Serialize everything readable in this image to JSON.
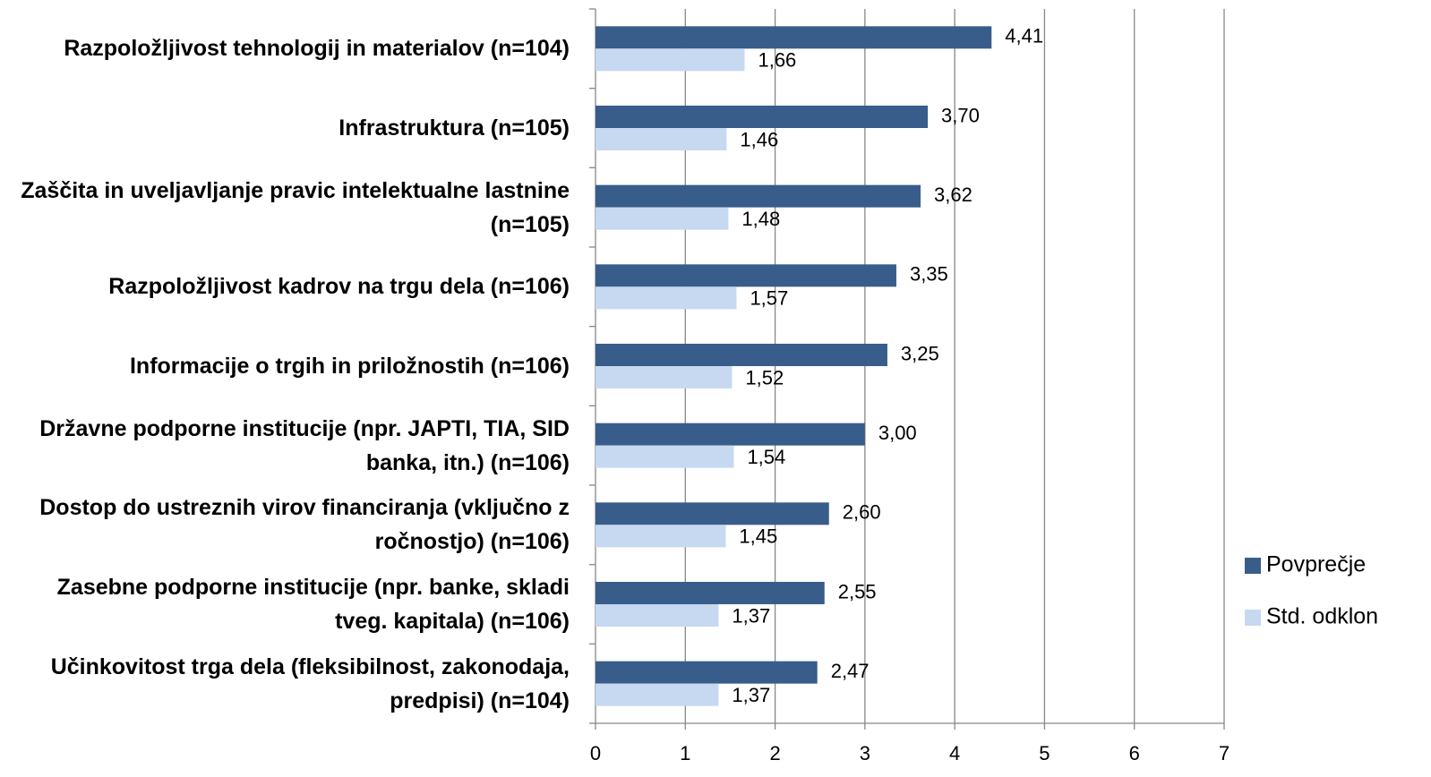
{
  "chart_data": {
    "type": "bar",
    "orientation": "horizontal",
    "categories": [
      "Razpoložljivost tehnologij in materialov (n=104)",
      "Infrastruktura (n=105)",
      "Zaščita in uveljavljanje pravic intelektualne lastnine (n=105)",
      "Razpoložljivost kadrov na trgu dela (n=106)",
      "Informacije o trgih in priložnostih (n=106)",
      "Državne podporne institucije (npr. JAPTI, TIA, SID banka, itn.) (n=106)",
      "Dostop do ustreznih virov financiranja (vključno z ročnostjo) (n=106)",
      "Zasebne podporne institucije (npr. banke, skladi tveg. kapitala) (n=106)",
      "Učinkovitost trga dela (fleksibilnost, zakonodaja, predpisi) (n=104)"
    ],
    "series": [
      {
        "name": "Povprečje",
        "color": "#385d8a",
        "values": [
          4.41,
          3.7,
          3.62,
          3.35,
          3.25,
          3.0,
          2.6,
          2.55,
          2.47
        ],
        "value_labels": [
          "4,41",
          "3,70",
          "3,62",
          "3,35",
          "3,25",
          "3,00",
          "2,60",
          "2,55",
          "2,47"
        ]
      },
      {
        "name": "Std. odklon",
        "color": "#c6d9f1",
        "values": [
          1.66,
          1.46,
          1.48,
          1.57,
          1.52,
          1.54,
          1.45,
          1.37,
          1.37
        ],
        "value_labels": [
          "1,66",
          "1,46",
          "1,48",
          "1,57",
          "1,52",
          "1,54",
          "1,45",
          "1,37",
          "1,37"
        ]
      }
    ],
    "xlim": [
      0,
      7
    ],
    "xticks": [
      0,
      1,
      2,
      3,
      4,
      5,
      6,
      7
    ],
    "grid": true,
    "legend": "right"
  }
}
